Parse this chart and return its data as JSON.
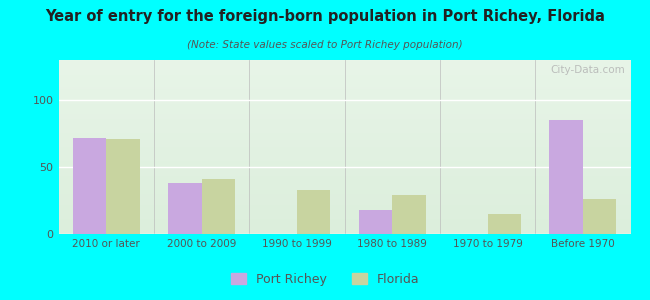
{
  "title": "Year of entry for the foreign-born population in Port Richey, Florida",
  "subtitle": "(Note: State values scaled to Port Richey population)",
  "categories": [
    "2010 or later",
    "2000 to 2009",
    "1990 to 1999",
    "1980 to 1989",
    "1970 to 1979",
    "Before 1970"
  ],
  "port_richey": [
    72,
    38,
    0,
    18,
    0,
    85
  ],
  "florida": [
    71,
    41,
    33,
    29,
    15,
    26
  ],
  "port_richey_color": "#c9a8e0",
  "florida_color": "#c8d4a0",
  "background_color": "#00ffff",
  "plot_bg_top": "#e8f5e8",
  "plot_bg_bottom": "#d0e8d0",
  "ylim": [
    0,
    130
  ],
  "yticks": [
    0,
    50,
    100
  ],
  "bar_width": 0.35,
  "watermark": "City-Data.com"
}
